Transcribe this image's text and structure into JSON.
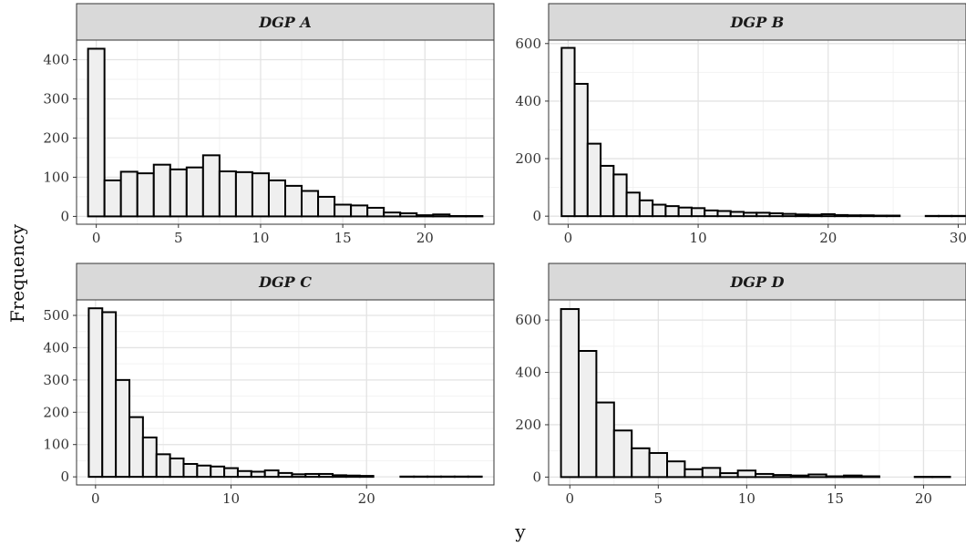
{
  "figure": {
    "xlabel": "y",
    "ylabel": "Frequency"
  },
  "chart_data": [
    {
      "type": "bar",
      "title": "DGP A",
      "x": [
        0,
        1,
        2,
        3,
        4,
        5,
        6,
        7,
        8,
        9,
        10,
        11,
        12,
        13,
        14,
        15,
        16,
        17,
        18,
        19,
        20,
        21,
        22,
        23
      ],
      "values": [
        428,
        92,
        114,
        110,
        132,
        120,
        125,
        156,
        115,
        113,
        110,
        92,
        78,
        65,
        50,
        30,
        28,
        22,
        10,
        8,
        3,
        5,
        1,
        1
      ],
      "xticks": [
        0,
        5,
        10,
        15,
        20
      ],
      "yticks": [
        0,
        100,
        200,
        300,
        400
      ],
      "xlim": [
        -1.2,
        24.2
      ],
      "ylim": [
        -20,
        450
      ],
      "grid": true
    },
    {
      "type": "bar",
      "title": "DGP B",
      "x": [
        0,
        1,
        2,
        3,
        4,
        5,
        6,
        7,
        8,
        9,
        10,
        11,
        12,
        13,
        14,
        15,
        16,
        17,
        18,
        19,
        20,
        21,
        22,
        23,
        24,
        25,
        26,
        27,
        28,
        29,
        30
      ],
      "values": [
        585,
        460,
        252,
        175,
        145,
        82,
        55,
        40,
        35,
        30,
        28,
        20,
        18,
        15,
        12,
        12,
        10,
        8,
        6,
        5,
        7,
        4,
        3,
        3,
        2,
        2,
        0,
        0,
        1,
        1,
        1
      ],
      "xticks": [
        0,
        10,
        20,
        30
      ],
      "yticks": [
        0,
        200,
        400,
        600
      ],
      "xlim": [
        -1.5,
        30.6
      ],
      "ylim": [
        -28,
        612
      ],
      "grid": true
    },
    {
      "type": "bar",
      "title": "DGP C",
      "x": [
        0,
        1,
        2,
        3,
        4,
        5,
        6,
        7,
        8,
        9,
        10,
        11,
        12,
        13,
        14,
        15,
        16,
        17,
        18,
        19,
        20,
        21,
        22,
        23,
        24,
        25,
        26,
        27,
        28
      ],
      "values": [
        522,
        510,
        300,
        185,
        122,
        70,
        57,
        40,
        35,
        32,
        27,
        18,
        16,
        20,
        12,
        8,
        9,
        9,
        5,
        4,
        3,
        0,
        0,
        1,
        1,
        1,
        1,
        1,
        1
      ],
      "xticks": [
        0,
        10,
        20
      ],
      "yticks": [
        0,
        100,
        200,
        300,
        400,
        500
      ],
      "xlim": [
        -1.4,
        29.4
      ],
      "ylim": [
        -25,
        548
      ],
      "grid": true
    },
    {
      "type": "bar",
      "title": "DGP D",
      "x": [
        0,
        1,
        2,
        3,
        4,
        5,
        6,
        7,
        8,
        9,
        10,
        11,
        12,
        13,
        14,
        15,
        16,
        17,
        18,
        19,
        20,
        21
      ],
      "values": [
        642,
        482,
        285,
        178,
        110,
        92,
        60,
        30,
        35,
        15,
        25,
        12,
        8,
        6,
        10,
        3,
        6,
        3,
        0,
        0,
        1,
        1
      ],
      "xticks": [
        0,
        5,
        10,
        15,
        20
      ],
      "yticks": [
        0,
        200,
        400,
        600
      ],
      "xlim": [
        -1.2,
        22.4
      ],
      "ylim": [
        -30,
        677
      ],
      "grid": true
    }
  ]
}
